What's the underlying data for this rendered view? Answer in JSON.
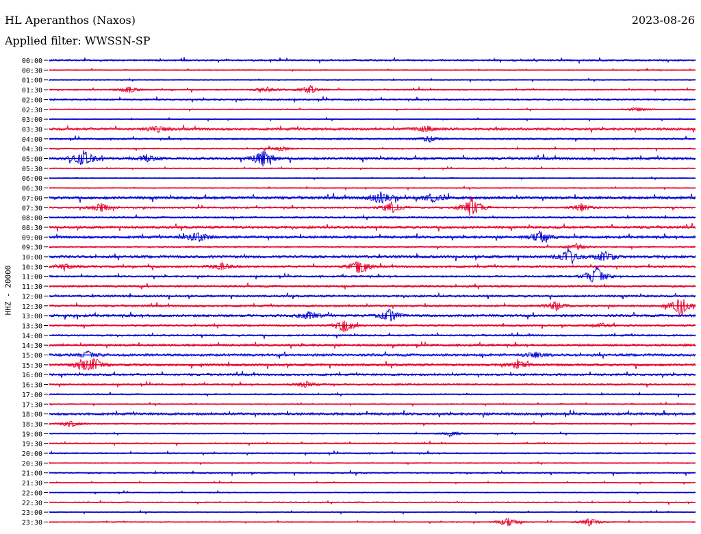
{
  "header": {
    "station": "HL Aperanthos (Naxos)",
    "date": "2023-08-26",
    "filter": "Applied filter: WWSSN-SP"
  },
  "channel_label": "HHZ - 20000",
  "chart_data": {
    "type": "line",
    "title": "HL Aperanthos (Naxos)",
    "subtitle": "Applied filter: WWSSN-SP",
    "date": "2023-08-26",
    "ylabel": "HHZ - 20000",
    "row_labels": [
      "00:00",
      "00:30",
      "01:00",
      "01:30",
      "02:00",
      "02:30",
      "03:00",
      "03:30",
      "04:00",
      "04:30",
      "05:00",
      "05:30",
      "06:00",
      "06:30",
      "07:00",
      "07:30",
      "08:00",
      "08:30",
      "09:00",
      "09:30",
      "10:00",
      "10:30",
      "11:00",
      "11:30",
      "12:00",
      "12:30",
      "13:00",
      "13:30",
      "14:00",
      "14:30",
      "15:00",
      "15:30",
      "16:00",
      "16:30",
      "17:00",
      "17:30",
      "18:00",
      "18:30",
      "19:00",
      "19:30",
      "20:00",
      "20:30",
      "21:00",
      "21:30",
      "22:00",
      "22:30",
      "23:00",
      "23:30"
    ],
    "trace_colors": [
      "#0000d0",
      "#e8002a"
    ],
    "minutes_per_row": 30,
    "noise_level": [
      1,
      0.6,
      0.6,
      0.8,
      1,
      0.6,
      0.6,
      1.4,
      1,
      0.8,
      1.5,
      0.6,
      0.6,
      0.6,
      1.6,
      1,
      1,
      1.4,
      1.4,
      0.9,
      1.5,
      1.2,
      1,
      1.2,
      1.2,
      1.2,
      1.4,
      1.1,
      1,
      1.3,
      1.4,
      1.4,
      1.2,
      1,
      0.8,
      0.6,
      1.4,
      0.8,
      0.6,
      0.7,
      0.8,
      0.6,
      0.9,
      0.6,
      0.6,
      0.7,
      0.6,
      0.6
    ],
    "events": [
      {
        "row": 3,
        "minute": 3.7,
        "amplitude": 4
      },
      {
        "row": 3,
        "minute": 10.1,
        "amplitude": 3
      },
      {
        "row": 3,
        "minute": 12.1,
        "amplitude": 5
      },
      {
        "row": 5,
        "minute": 27.3,
        "amplitude": 3
      },
      {
        "row": 7,
        "minute": 5.0,
        "amplitude": 5
      },
      {
        "row": 7,
        "minute": 17.5,
        "amplitude": 4
      },
      {
        "row": 8,
        "minute": 17.6,
        "amplitude": 4
      },
      {
        "row": 9,
        "minute": 10.7,
        "amplitude": 3
      },
      {
        "row": 10,
        "minute": 1.6,
        "amplitude": 11
      },
      {
        "row": 10,
        "minute": 4.5,
        "amplitude": 5
      },
      {
        "row": 10,
        "minute": 9.9,
        "amplitude": 11
      },
      {
        "row": 14,
        "minute": 15.4,
        "amplitude": 9
      },
      {
        "row": 14,
        "minute": 17.8,
        "amplitude": 5
      },
      {
        "row": 15,
        "minute": 2.4,
        "amplitude": 6
      },
      {
        "row": 15,
        "minute": 15.9,
        "amplitude": 8
      },
      {
        "row": 15,
        "minute": 19.6,
        "amplitude": 14
      },
      {
        "row": 15,
        "minute": 24.7,
        "amplitude": 5
      },
      {
        "row": 18,
        "minute": 6.9,
        "amplitude": 8
      },
      {
        "row": 18,
        "minute": 22.8,
        "amplitude": 7
      },
      {
        "row": 19,
        "minute": 24.5,
        "amplitude": 4
      },
      {
        "row": 20,
        "minute": 24.1,
        "amplitude": 8
      },
      {
        "row": 20,
        "minute": 25.8,
        "amplitude": 7
      },
      {
        "row": 21,
        "minute": 0.7,
        "amplitude": 4
      },
      {
        "row": 21,
        "minute": 8.0,
        "amplitude": 5
      },
      {
        "row": 21,
        "minute": 14.4,
        "amplitude": 9
      },
      {
        "row": 22,
        "minute": 25.4,
        "amplitude": 12
      },
      {
        "row": 25,
        "minute": 23.5,
        "amplitude": 5
      },
      {
        "row": 25,
        "minute": 29.3,
        "amplitude": 12
      },
      {
        "row": 26,
        "minute": 12.1,
        "amplitude": 6
      },
      {
        "row": 26,
        "minute": 15.8,
        "amplitude": 8
      },
      {
        "row": 27,
        "minute": 13.7,
        "amplitude": 9
      },
      {
        "row": 27,
        "minute": 25.6,
        "amplitude": 3
      },
      {
        "row": 30,
        "minute": 1.8,
        "amplitude": 4
      },
      {
        "row": 30,
        "minute": 22.6,
        "amplitude": 4
      },
      {
        "row": 31,
        "minute": 1.5,
        "amplitude": 6
      },
      {
        "row": 31,
        "minute": 2.1,
        "amplitude": 8
      },
      {
        "row": 31,
        "minute": 21.8,
        "amplitude": 5
      },
      {
        "row": 33,
        "minute": 11.9,
        "amplitude": 4
      },
      {
        "row": 37,
        "minute": 1.0,
        "amplitude": 4
      },
      {
        "row": 38,
        "minute": 18.7,
        "amplitude": 3
      },
      {
        "row": 47,
        "minute": 21.3,
        "amplitude": 5
      },
      {
        "row": 47,
        "minute": 25.1,
        "amplitude": 5
      }
    ]
  }
}
